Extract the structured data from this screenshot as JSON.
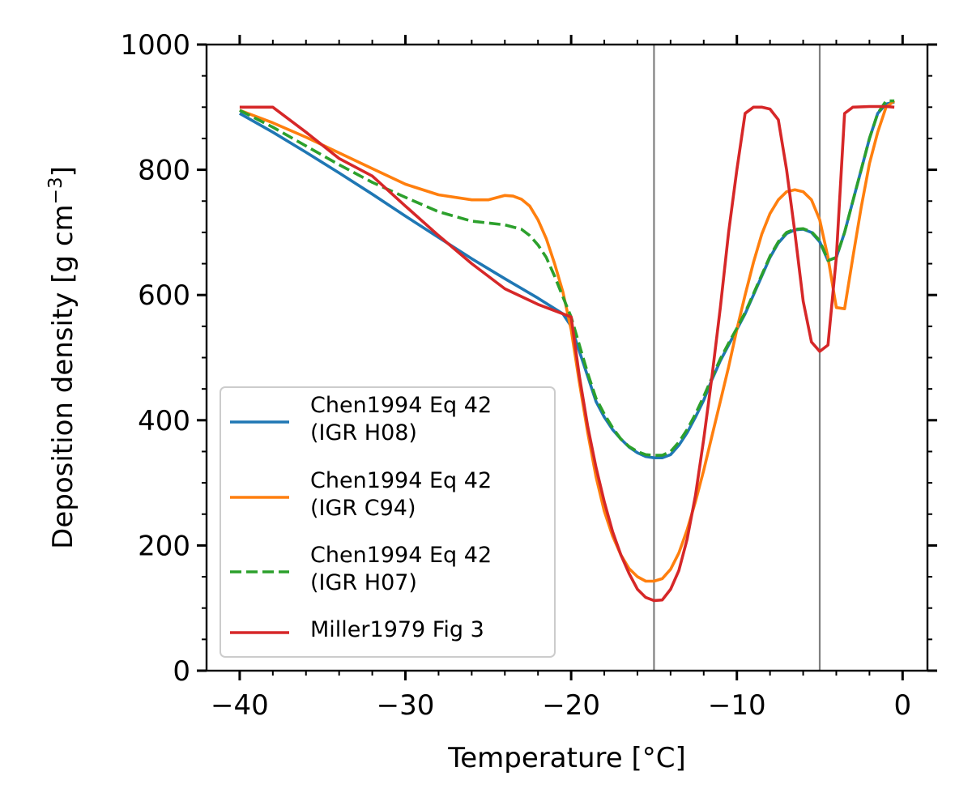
{
  "chart_data": {
    "type": "line",
    "xlabel": "Temperature [°C]",
    "ylabel": "Deposition density [g cm",
    "ylabel_sup": "−3",
    "ylabel_tail": "]",
    "xlim": [
      -42.0,
      1.5
    ],
    "ylim": [
      0,
      1000
    ],
    "x_ticks": [
      -40,
      -30,
      -20,
      -10,
      0
    ],
    "x_tick_labels": [
      "−40",
      "−30",
      "−20",
      "−10",
      "0"
    ],
    "y_ticks": [
      0,
      200,
      400,
      600,
      800,
      1000
    ],
    "y_tick_labels": [
      "0",
      "200",
      "400",
      "600",
      "800",
      "1000"
    ],
    "vertical_lines": [
      -15,
      -5
    ],
    "vertical_line_color": "#808080",
    "grid": false,
    "legend_position": "lower-left",
    "series": [
      {
        "name": "Chen1994 Eq 42\n(IGR H08)",
        "color": "#1f77b4",
        "style": "solid",
        "x": [
          -40,
          -38,
          -36,
          -34,
          -32,
          -30,
          -28,
          -26,
          -24,
          -22,
          -20.5,
          -20,
          -19.5,
          -19,
          -18.5,
          -18,
          -17.5,
          -17,
          -16.5,
          -16,
          -15.5,
          -15,
          -14.5,
          -14,
          -13.5,
          -13,
          -12.5,
          -12,
          -11.5,
          -11,
          -10.5,
          -10,
          -9.5,
          -9,
          -8.5,
          -8,
          -7.5,
          -7,
          -6.5,
          -6,
          -5.5,
          -5,
          -4.5,
          -4,
          -3.5,
          -3,
          -2.5,
          -2,
          -1.5,
          -1,
          -0.5
        ],
        "y": [
          890,
          860,
          828,
          795,
          761,
          726,
          692,
          658,
          626,
          595,
          570,
          550,
          510,
          470,
          430,
          405,
          385,
          370,
          357,
          348,
          342,
          340,
          340,
          345,
          360,
          380,
          405,
          432,
          465,
          495,
          520,
          545,
          570,
          600,
          630,
          660,
          683,
          698,
          704,
          705,
          700,
          685,
          655,
          660,
          700,
          750,
          800,
          850,
          890,
          905,
          908
        ]
      },
      {
        "name": "Chen1994 Eq 42\n(IGR C94)",
        "color": "#ff7f0e",
        "style": "solid",
        "x": [
          -40,
          -38,
          -36,
          -34,
          -32,
          -30,
          -28,
          -26,
          -25,
          -24,
          -23.5,
          -23,
          -22.5,
          -22,
          -21.5,
          -21,
          -20.5,
          -20,
          -19.5,
          -19,
          -18.5,
          -18,
          -17.5,
          -17,
          -16.5,
          -16,
          -15.5,
          -15,
          -14.5,
          -14,
          -13.5,
          -13,
          -12.5,
          -12,
          -11.5,
          -11,
          -10.5,
          -10,
          -9.5,
          -9,
          -8.5,
          -8,
          -7.5,
          -7,
          -6.5,
          -6,
          -5.5,
          -5,
          -4.5,
          -4,
          -3.5,
          -3,
          -2.5,
          -2,
          -1.5,
          -1,
          -0.5
        ],
        "y": [
          895,
          875,
          852,
          827,
          802,
          777,
          760,
          752,
          752,
          759,
          758,
          753,
          742,
          720,
          690,
          650,
          605,
          545,
          460,
          380,
          310,
          255,
          215,
          185,
          163,
          150,
          143,
          143,
          147,
          162,
          188,
          225,
          270,
          320,
          375,
          430,
          485,
          545,
          600,
          652,
          697,
          730,
          752,
          765,
          768,
          765,
          752,
          720,
          660,
          580,
          578,
          660,
          740,
          810,
          860,
          900,
          910
        ]
      },
      {
        "name": "Chen1994 Eq 42\n(IGR H07)",
        "color": "#2ca02c",
        "style": "dashed",
        "x": [
          -40,
          -38,
          -36,
          -34,
          -32,
          -30,
          -28,
          -26,
          -25,
          -24,
          -23,
          -22.5,
          -22,
          -21.5,
          -21,
          -20.5,
          -20,
          -19.5,
          -19,
          -18.5,
          -18,
          -17.5,
          -17,
          -16.5,
          -16,
          -15.5,
          -15,
          -14.5,
          -14,
          -13.5,
          -13,
          -12.5,
          -12,
          -11.5,
          -11,
          -10.5,
          -10,
          -9.5,
          -9,
          -8.5,
          -8,
          -7.5,
          -7,
          -6.5,
          -6,
          -5.5,
          -5,
          -4.5,
          -4,
          -3.5,
          -3,
          -2.5,
          -2,
          -1.5,
          -1,
          -0.5
        ],
        "y": [
          895,
          868,
          838,
          808,
          780,
          756,
          733,
          718,
          715,
          712,
          705,
          695,
          680,
          660,
          630,
          597,
          565,
          520,
          475,
          435,
          410,
          388,
          370,
          358,
          350,
          345,
          344,
          344,
          350,
          365,
          385,
          410,
          438,
          468,
          498,
          523,
          547,
          572,
          602,
          632,
          662,
          685,
          700,
          705,
          706,
          701,
          687,
          655,
          660,
          700,
          750,
          800,
          850,
          890,
          910,
          910
        ]
      },
      {
        "name": "Miller1979 Fig 3",
        "color": "#d62728",
        "style": "solid",
        "x": [
          -40,
          -38,
          -36,
          -34,
          -32,
          -30,
          -28,
          -26,
          -24,
          -22,
          -20,
          -19.5,
          -19,
          -18.5,
          -18,
          -17.5,
          -17,
          -16.5,
          -16,
          -15.5,
          -15,
          -14.5,
          -14,
          -13.5,
          -13,
          -12.5,
          -12,
          -11.5,
          -11,
          -10.5,
          -10,
          -9.5,
          -9,
          -8.5,
          -8,
          -7.5,
          -7,
          -6.5,
          -6,
          -5.5,
          -5,
          -4.5,
          -4,
          -3.5,
          -3,
          -2,
          -1,
          -0.5
        ],
        "y": [
          900,
          900,
          860,
          818,
          790,
          742,
          695,
          650,
          610,
          585,
          565,
          470,
          390,
          325,
          270,
          222,
          185,
          155,
          130,
          117,
          112,
          113,
          130,
          160,
          210,
          280,
          370,
          470,
          580,
          700,
          800,
          890,
          900,
          900,
          897,
          880,
          800,
          700,
          590,
          525,
          510,
          520,
          660,
          890,
          900,
          901,
          901,
          900
        ]
      }
    ]
  }
}
